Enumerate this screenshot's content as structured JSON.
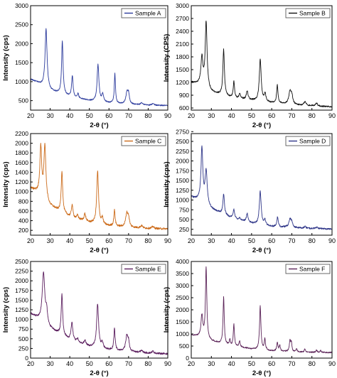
{
  "chart_data": [
    {
      "type": "line",
      "title": "",
      "legend": "Sample A",
      "legend_position": "top-right",
      "color": "#2b3a9c",
      "xlabel": "2-θ (°)",
      "ylabel": "Intensity (cps)",
      "xlim": [
        20,
        90
      ],
      "ylim": [
        250,
        3000
      ],
      "xticks": [
        20,
        30,
        40,
        50,
        60,
        70,
        80,
        90
      ],
      "yticks": [
        500,
        1000,
        1500,
        2000,
        2500,
        3000
      ],
      "baseline": [
        [
          20,
          1060
        ],
        [
          24,
          960
        ],
        [
          30,
          760
        ],
        [
          40,
          600
        ],
        [
          50,
          500
        ],
        [
          60,
          440
        ],
        [
          70,
          400
        ],
        [
          80,
          380
        ],
        [
          90,
          370
        ]
      ],
      "peaks": [
        [
          27.9,
          1550,
          0.6
        ],
        [
          36.2,
          1400,
          0.45
        ],
        [
          41.3,
          560,
          0.45
        ],
        [
          44.2,
          120,
          0.4
        ],
        [
          54.4,
          970,
          0.55
        ],
        [
          56.8,
          200,
          0.5
        ],
        [
          63,
          780,
          0.35
        ],
        [
          69.2,
          300,
          0.7
        ],
        [
          70,
          220,
          0.5
        ],
        [
          76.7,
          60,
          0.6
        ],
        [
          82.5,
          50,
          0.6
        ]
      ],
      "noise": 15
    },
    {
      "type": "line",
      "title": "",
      "legend": "Sample B",
      "legend_position": "top-right",
      "color": "#111111",
      "xlabel": "2-θ (°)",
      "ylabel": "Intensity (CPS)",
      "xlim": [
        20,
        90
      ],
      "ylim": [
        550,
        3000
      ],
      "xticks": [
        20,
        30,
        40,
        50,
        60,
        70,
        80,
        90
      ],
      "yticks": [
        600,
        900,
        1200,
        1500,
        1800,
        2100,
        2400,
        2700,
        3000
      ],
      "baseline": [
        [
          20,
          1200
        ],
        [
          24,
          1150
        ],
        [
          30,
          970
        ],
        [
          40,
          840
        ],
        [
          50,
          780
        ],
        [
          60,
          720
        ],
        [
          70,
          680
        ],
        [
          80,
          650
        ],
        [
          90,
          630
        ]
      ],
      "peaks": [
        [
          25.3,
          650,
          0.6
        ],
        [
          27.4,
          1550,
          0.55
        ],
        [
          36.1,
          1080,
          0.45
        ],
        [
          41.2,
          380,
          0.4
        ],
        [
          44.1,
          120,
          0.4
        ],
        [
          47.8,
          200,
          0.5
        ],
        [
          54.3,
          980,
          0.55
        ],
        [
          56.7,
          180,
          0.5
        ],
        [
          62.8,
          420,
          0.4
        ],
        [
          69.1,
          300,
          0.7
        ],
        [
          70,
          180,
          0.5
        ],
        [
          76.6,
          90,
          0.6
        ],
        [
          82.3,
          70,
          0.6
        ]
      ],
      "noise": 16
    },
    {
      "type": "line",
      "title": "",
      "legend": "Sample C",
      "legend_position": "top-right",
      "color": "#cc6b1a",
      "xlabel": "2-θ (°)",
      "ylabel": "Intensity (cps)",
      "xlim": [
        20,
        90
      ],
      "ylim": [
        100,
        2200
      ],
      "xticks": [
        20,
        30,
        40,
        50,
        60,
        70,
        80,
        90
      ],
      "yticks": [
        200,
        400,
        600,
        800,
        1000,
        1200,
        1400,
        1600,
        1800,
        2000,
        2200
      ],
      "baseline": [
        [
          20,
          1080
        ],
        [
          24,
          960
        ],
        [
          30,
          700
        ],
        [
          40,
          480
        ],
        [
          50,
          360
        ],
        [
          60,
          290
        ],
        [
          70,
          260
        ],
        [
          80,
          240
        ],
        [
          90,
          230
        ]
      ],
      "peaks": [
        [
          25.2,
          1000,
          0.55
        ],
        [
          27.3,
          1100,
          0.6
        ],
        [
          36,
          850,
          0.45
        ],
        [
          41.2,
          260,
          0.45
        ],
        [
          44,
          80,
          0.4
        ],
        [
          47.7,
          150,
          0.5
        ],
        [
          54.2,
          1080,
          0.55
        ],
        [
          56.6,
          130,
          0.5
        ],
        [
          62.8,
          330,
          0.4
        ],
        [
          69.1,
          280,
          0.7
        ],
        [
          70,
          160,
          0.5
        ],
        [
          76.6,
          50,
          0.6
        ],
        [
          82.4,
          40,
          0.6
        ]
      ],
      "noise": 20
    },
    {
      "type": "line",
      "title": "",
      "legend": "Sample D",
      "legend_position": "top-right",
      "color": "#2e3588",
      "xlabel": "2-θ (°)",
      "ylabel": "Intensity (cps)",
      "xlim": [
        20,
        90
      ],
      "ylim": [
        100,
        2700
      ],
      "xticks": [
        20,
        30,
        40,
        50,
        60,
        70,
        80,
        90
      ],
      "yticks": [
        250,
        500,
        750,
        1000,
        1250,
        1500,
        1750,
        2000,
        2250,
        2500,
        2750
      ],
      "baseline": [
        [
          20,
          1080
        ],
        [
          24,
          980
        ],
        [
          30,
          760
        ],
        [
          40,
          540
        ],
        [
          50,
          400
        ],
        [
          60,
          320
        ],
        [
          70,
          290
        ],
        [
          80,
          270
        ],
        [
          90,
          260
        ]
      ],
      "peaks": [
        [
          25.3,
          1380,
          0.55
        ],
        [
          27.4,
          850,
          0.65
        ],
        [
          36.1,
          520,
          0.45
        ],
        [
          41.2,
          230,
          0.45
        ],
        [
          44.1,
          60,
          0.4
        ],
        [
          47.8,
          220,
          0.5
        ],
        [
          54.3,
          850,
          0.55
        ],
        [
          56.6,
          130,
          0.5
        ],
        [
          62.9,
          250,
          0.4
        ],
        [
          69.1,
          200,
          0.7
        ],
        [
          70,
          120,
          0.5
        ],
        [
          76.6,
          40,
          0.6
        ],
        [
          82.4,
          35,
          0.6
        ]
      ],
      "noise": 20
    },
    {
      "type": "line",
      "title": "",
      "legend": "Sample E",
      "legend_position": "top-right",
      "color": "#5c1f5f",
      "xlabel": "2-θ (°)",
      "ylabel": "Intensity (cps)",
      "xlim": [
        20,
        90
      ],
      "ylim": [
        0,
        2500
      ],
      "xticks": [
        20,
        30,
        40,
        50,
        60,
        70,
        80,
        90
      ],
      "yticks": [
        0,
        250,
        500,
        750,
        1000,
        1250,
        1500,
        1750,
        2000,
        2250,
        2500
      ],
      "baseline": [
        [
          20,
          1150
        ],
        [
          24,
          1000
        ],
        [
          30,
          760
        ],
        [
          40,
          470
        ],
        [
          50,
          300
        ],
        [
          60,
          210
        ],
        [
          70,
          160
        ],
        [
          80,
          130
        ],
        [
          90,
          110
        ]
      ],
      "peaks": [
        [
          26.6,
          1300,
          0.8
        ],
        [
          28.2,
          300,
          0.5
        ],
        [
          36,
          1050,
          0.45
        ],
        [
          41.1,
          450,
          0.55
        ],
        [
          44,
          100,
          0.4
        ],
        [
          47.8,
          120,
          0.5
        ],
        [
          54.2,
          1130,
          0.6
        ],
        [
          56.6,
          150,
          0.5
        ],
        [
          62.8,
          560,
          0.4
        ],
        [
          69.1,
          400,
          0.7
        ],
        [
          70,
          200,
          0.5
        ],
        [
          76.6,
          60,
          0.6
        ],
        [
          82.4,
          50,
          0.6
        ]
      ],
      "noise": 22
    },
    {
      "type": "line",
      "title": "",
      "legend": "Sample F",
      "legend_position": "top-right",
      "color": "#5b2358",
      "xlabel": "2-θ (°)",
      "ylabel": "Intensity (cps)",
      "xlim": [
        20,
        90
      ],
      "ylim": [
        0,
        4000
      ],
      "xticks": [
        20,
        30,
        40,
        50,
        60,
        70,
        80,
        90
      ],
      "yticks": [
        0,
        500,
        1000,
        1500,
        2000,
        2500,
        3000,
        3500,
        4000
      ],
      "baseline": [
        [
          20,
          950
        ],
        [
          24,
          880
        ],
        [
          30,
          700
        ],
        [
          40,
          500
        ],
        [
          50,
          380
        ],
        [
          60,
          300
        ],
        [
          70,
          260
        ],
        [
          80,
          240
        ],
        [
          90,
          230
        ]
      ],
      "peaks": [
        [
          25.3,
          900,
          0.55
        ],
        [
          27.4,
          2950,
          0.4
        ],
        [
          36.1,
          1950,
          0.35
        ],
        [
          39.2,
          250,
          0.3
        ],
        [
          41.2,
          900,
          0.35
        ],
        [
          44,
          250,
          0.35
        ],
        [
          54.3,
          1800,
          0.4
        ],
        [
          56.6,
          450,
          0.35
        ],
        [
          62.8,
          350,
          0.35
        ],
        [
          64,
          250,
          0.3
        ],
        [
          69.1,
          450,
          0.4
        ],
        [
          69.8,
          350,
          0.3
        ],
        [
          72.4,
          130,
          0.3
        ],
        [
          76.5,
          120,
          0.35
        ],
        [
          82.3,
          100,
          0.35
        ],
        [
          84.3,
          80,
          0.35
        ]
      ],
      "noise": 25
    }
  ]
}
